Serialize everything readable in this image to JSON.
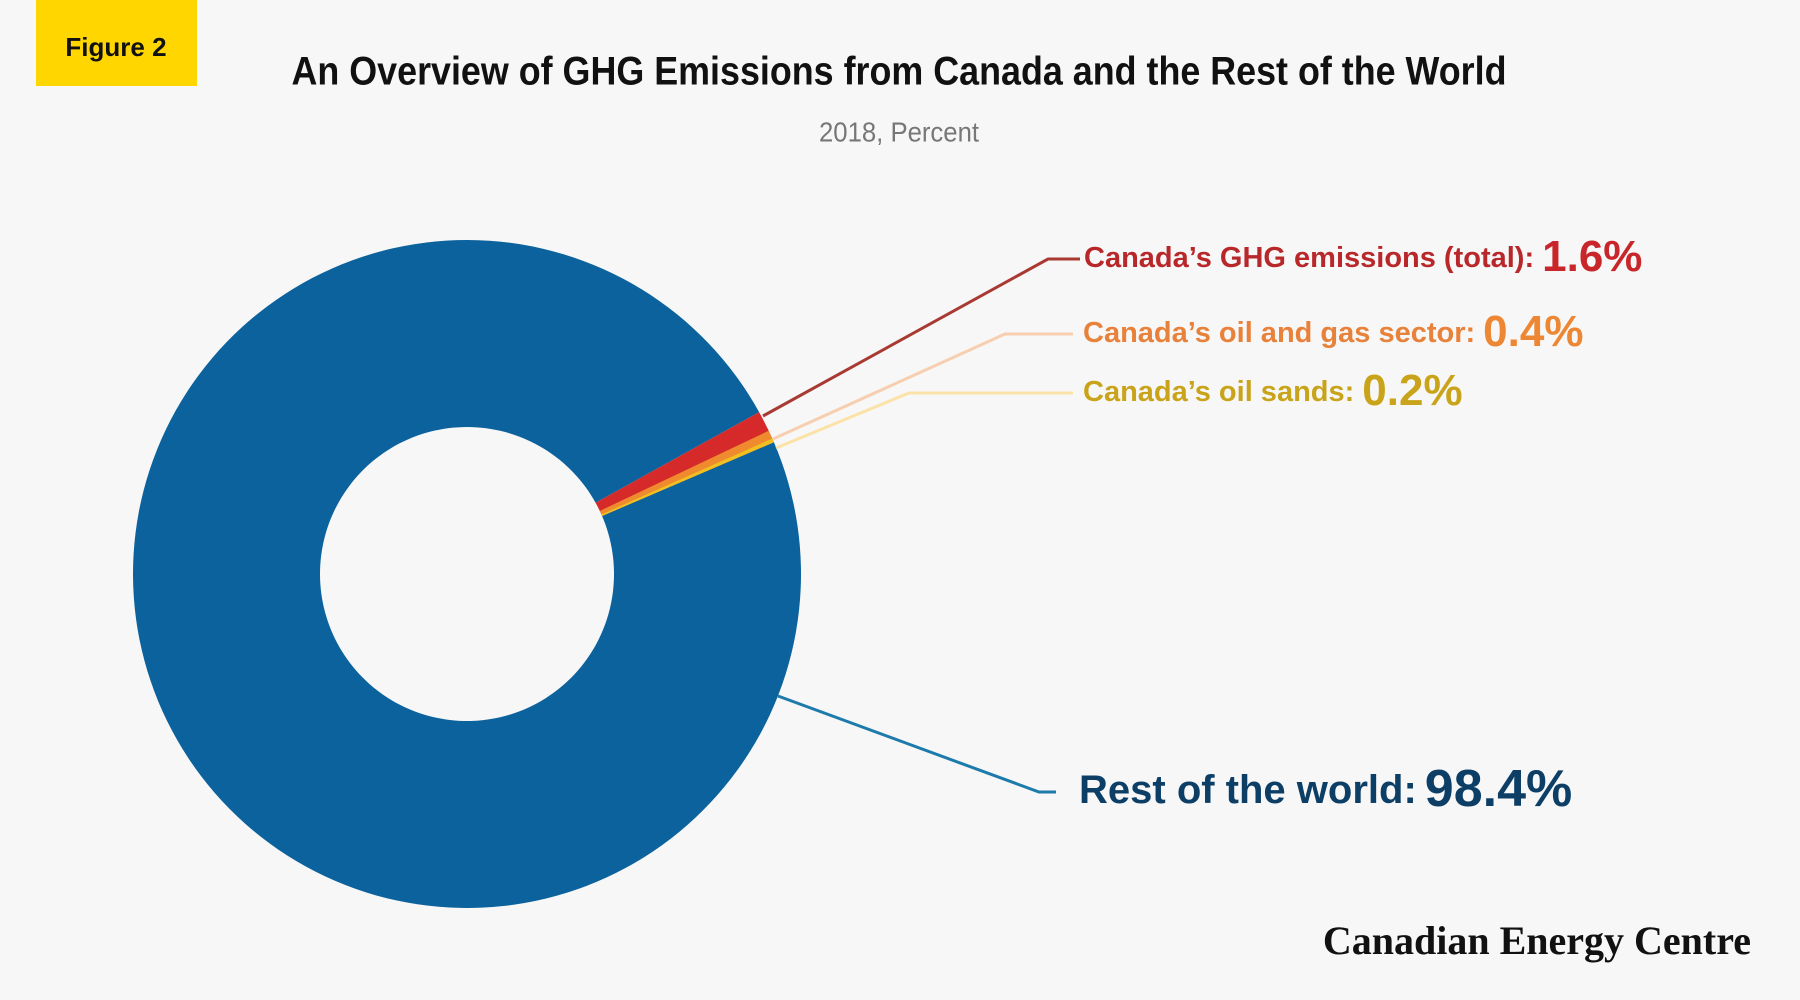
{
  "figure_label": "Figure 2",
  "source": "Canadian Energy Centre",
  "chart_data": {
    "type": "donut",
    "title": "An Overview of GHG Emissions from Canada and the Rest of the World",
    "subtitle": "2018, Percent",
    "categories": [
      "Rest of the world:",
      "Canada’s GHG emissions (total):",
      "Canada’s oil and gas sector:",
      "Canada’s oil sands:"
    ],
    "values": [
      98.4,
      1.6,
      0.4,
      0.2
    ],
    "value_labels": [
      "98.4%",
      "1.6%",
      "0.4%",
      "0.2%"
    ],
    "colors": [
      "#0b629c",
      "#d62a2a",
      "#ef8a2e",
      "#f0c020"
    ]
  }
}
